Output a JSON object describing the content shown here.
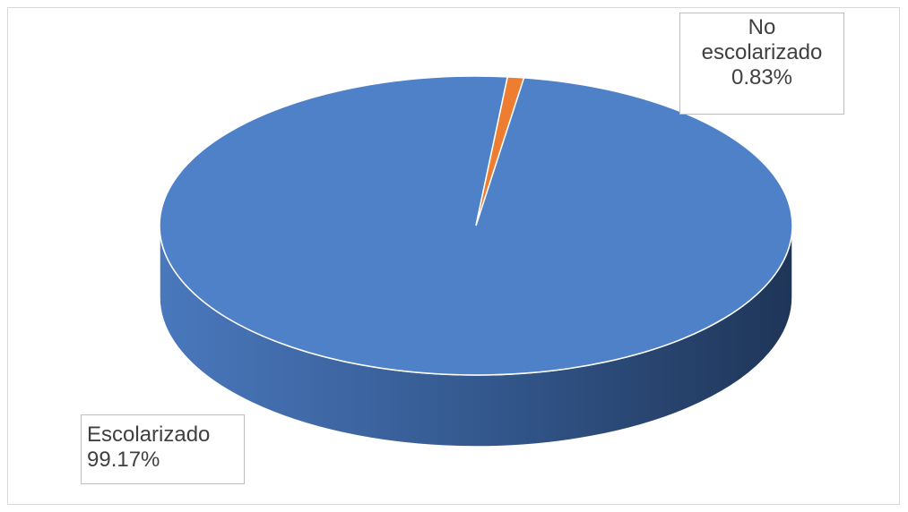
{
  "chart_data": {
    "type": "pie",
    "style": "3d",
    "categories": [
      "Escolarizado",
      "No escolarizado"
    ],
    "values": [
      99.17,
      0.83
    ],
    "value_labels": [
      "99.17%",
      "0.83%"
    ],
    "colors": [
      "#4f81c8",
      "#ed7d31"
    ],
    "side_colors": [
      "#2e5c9e",
      "#b35e1f"
    ],
    "title": "",
    "legend": "none",
    "data_labels": [
      {
        "category": "Escolarizado",
        "text": "Escolarizado",
        "value": "99.17%"
      },
      {
        "category": "No escolarizado",
        "text_line1": "No",
        "text_line2": "escolarizado",
        "value": "0.83%"
      }
    ]
  }
}
